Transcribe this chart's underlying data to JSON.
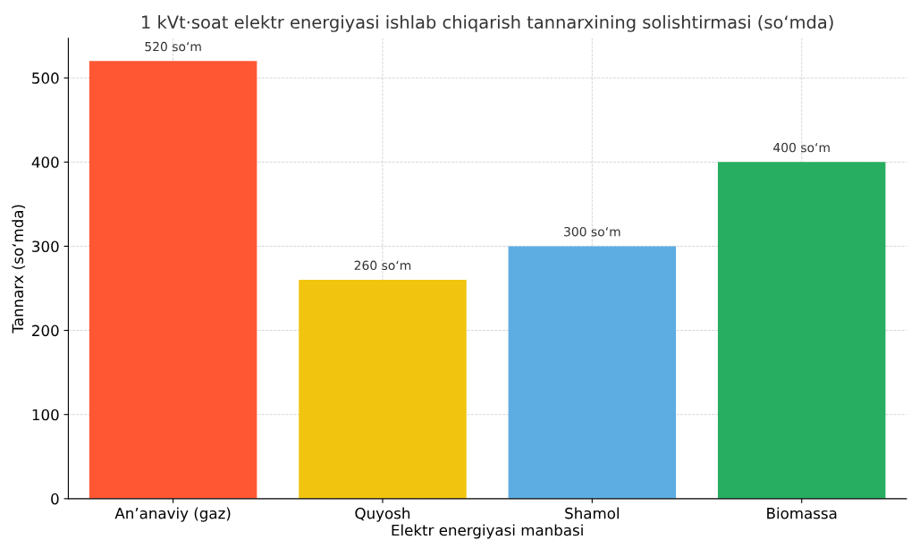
{
  "chart_data": {
    "type": "bar",
    "title": "1 kVt·soat elektr energiyasi ishlab chiqarish tannarxining solishtirmasi (so‘mda)",
    "xlabel": "Elektr energiyasi manbasi",
    "ylabel": "Tannarx (so‘mda)",
    "categories": [
      "An’anaviy (gaz)",
      "Quyosh",
      "Shamol",
      "Biomassa"
    ],
    "values": [
      520,
      260,
      300,
      400
    ],
    "colors": [
      "#ff5733",
      "#f1c40f",
      "#5dade2",
      "#27ae60"
    ],
    "value_labels": [
      "520 so‘m",
      "260 so‘m",
      "300 so‘m",
      "400 so‘m"
    ],
    "ylim": [
      0,
      547
    ],
    "yticks": [
      0,
      100,
      200,
      300,
      400,
      500
    ],
    "grid": true
  }
}
